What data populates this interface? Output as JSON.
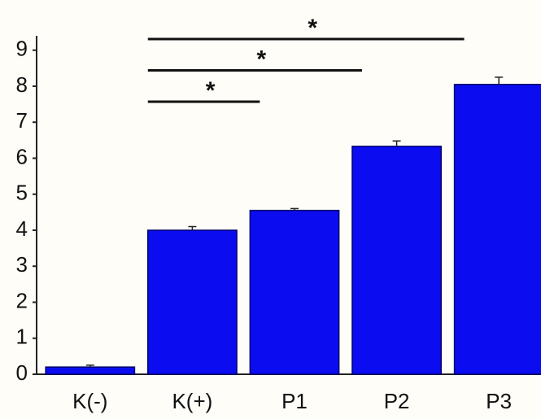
{
  "chart_data": {
    "type": "bar",
    "categories": [
      "K(-)",
      "K(+)",
      "P1",
      "P2",
      "P3"
    ],
    "values": [
      0.2,
      4.0,
      4.55,
      6.33,
      8.05
    ],
    "errors": [
      0.05,
      0.1,
      0.05,
      0.15,
      0.2
    ],
    "color": "#0c0cf0",
    "ylim": [
      0,
      9.4
    ],
    "yticks": [
      0,
      1,
      2,
      3,
      4,
      5,
      6,
      7,
      8,
      9
    ],
    "grid": false,
    "annotations": [
      {
        "text": "*",
        "between": [
          "K(+)",
          "P1"
        ]
      },
      {
        "text": "*",
        "between": [
          "K(+)",
          "P2"
        ]
      },
      {
        "text": "*",
        "between": [
          "K(+)",
          "P3"
        ]
      }
    ]
  }
}
